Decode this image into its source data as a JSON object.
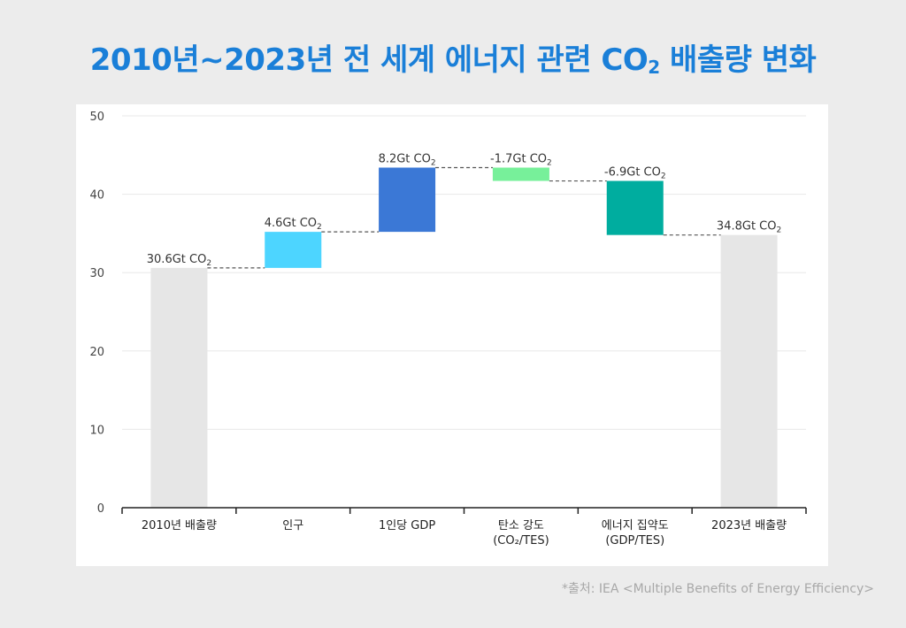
{
  "title": {
    "main": "2010년~2023년 전 세계 에너지 관련 CO",
    "sub": "2",
    "tail": " 배출량 변화"
  },
  "source": "*출처: IEA <Multiple Benefits of Energy Efficiency>",
  "colors": {
    "title": "#1a7fd8",
    "total": "#e6e6e6",
    "population": "#4dd5ff",
    "gdp_per_capita": "#3b78d6",
    "carbon_intensity": "#77f09a",
    "energy_intensity": "#00ad9f",
    "connector": "#555555",
    "grid": "#e8e8e8"
  },
  "chart_data": {
    "type": "waterfall",
    "ylim": [
      0,
      50
    ],
    "yticks": [
      0,
      10,
      20,
      30,
      40,
      50
    ],
    "grid": true,
    "steps": [
      {
        "category": [
          "2010년 배출량"
        ],
        "value": 30.6,
        "kind": "total",
        "label": "30.6Gt CO",
        "label_sub": "2",
        "color": "#e6e6e6"
      },
      {
        "category": [
          "인구"
        ],
        "value": 4.6,
        "kind": "delta",
        "label": "4.6Gt CO",
        "label_sub": "2",
        "color": "#4dd5ff"
      },
      {
        "category": [
          "1인당 GDP"
        ],
        "value": 8.2,
        "kind": "delta",
        "label": "8.2Gt CO",
        "label_sub": "2",
        "color": "#3b78d6"
      },
      {
        "category": [
          "탄소 강도",
          "(CO₂/TES)"
        ],
        "value": -1.7,
        "kind": "delta",
        "label": "-1.7Gt CO",
        "label_sub": "2",
        "color": "#77f09a"
      },
      {
        "category": [
          "에너지 집약도",
          "(GDP/TES)"
        ],
        "value": -6.9,
        "kind": "delta",
        "label": "-6.9Gt CO",
        "label_sub": "2",
        "color": "#00ad9f"
      },
      {
        "category": [
          "2023년 배출량"
        ],
        "value": 34.8,
        "kind": "total",
        "label": "34.8Gt CO",
        "label_sub": "2",
        "color": "#e6e6e6"
      }
    ]
  }
}
